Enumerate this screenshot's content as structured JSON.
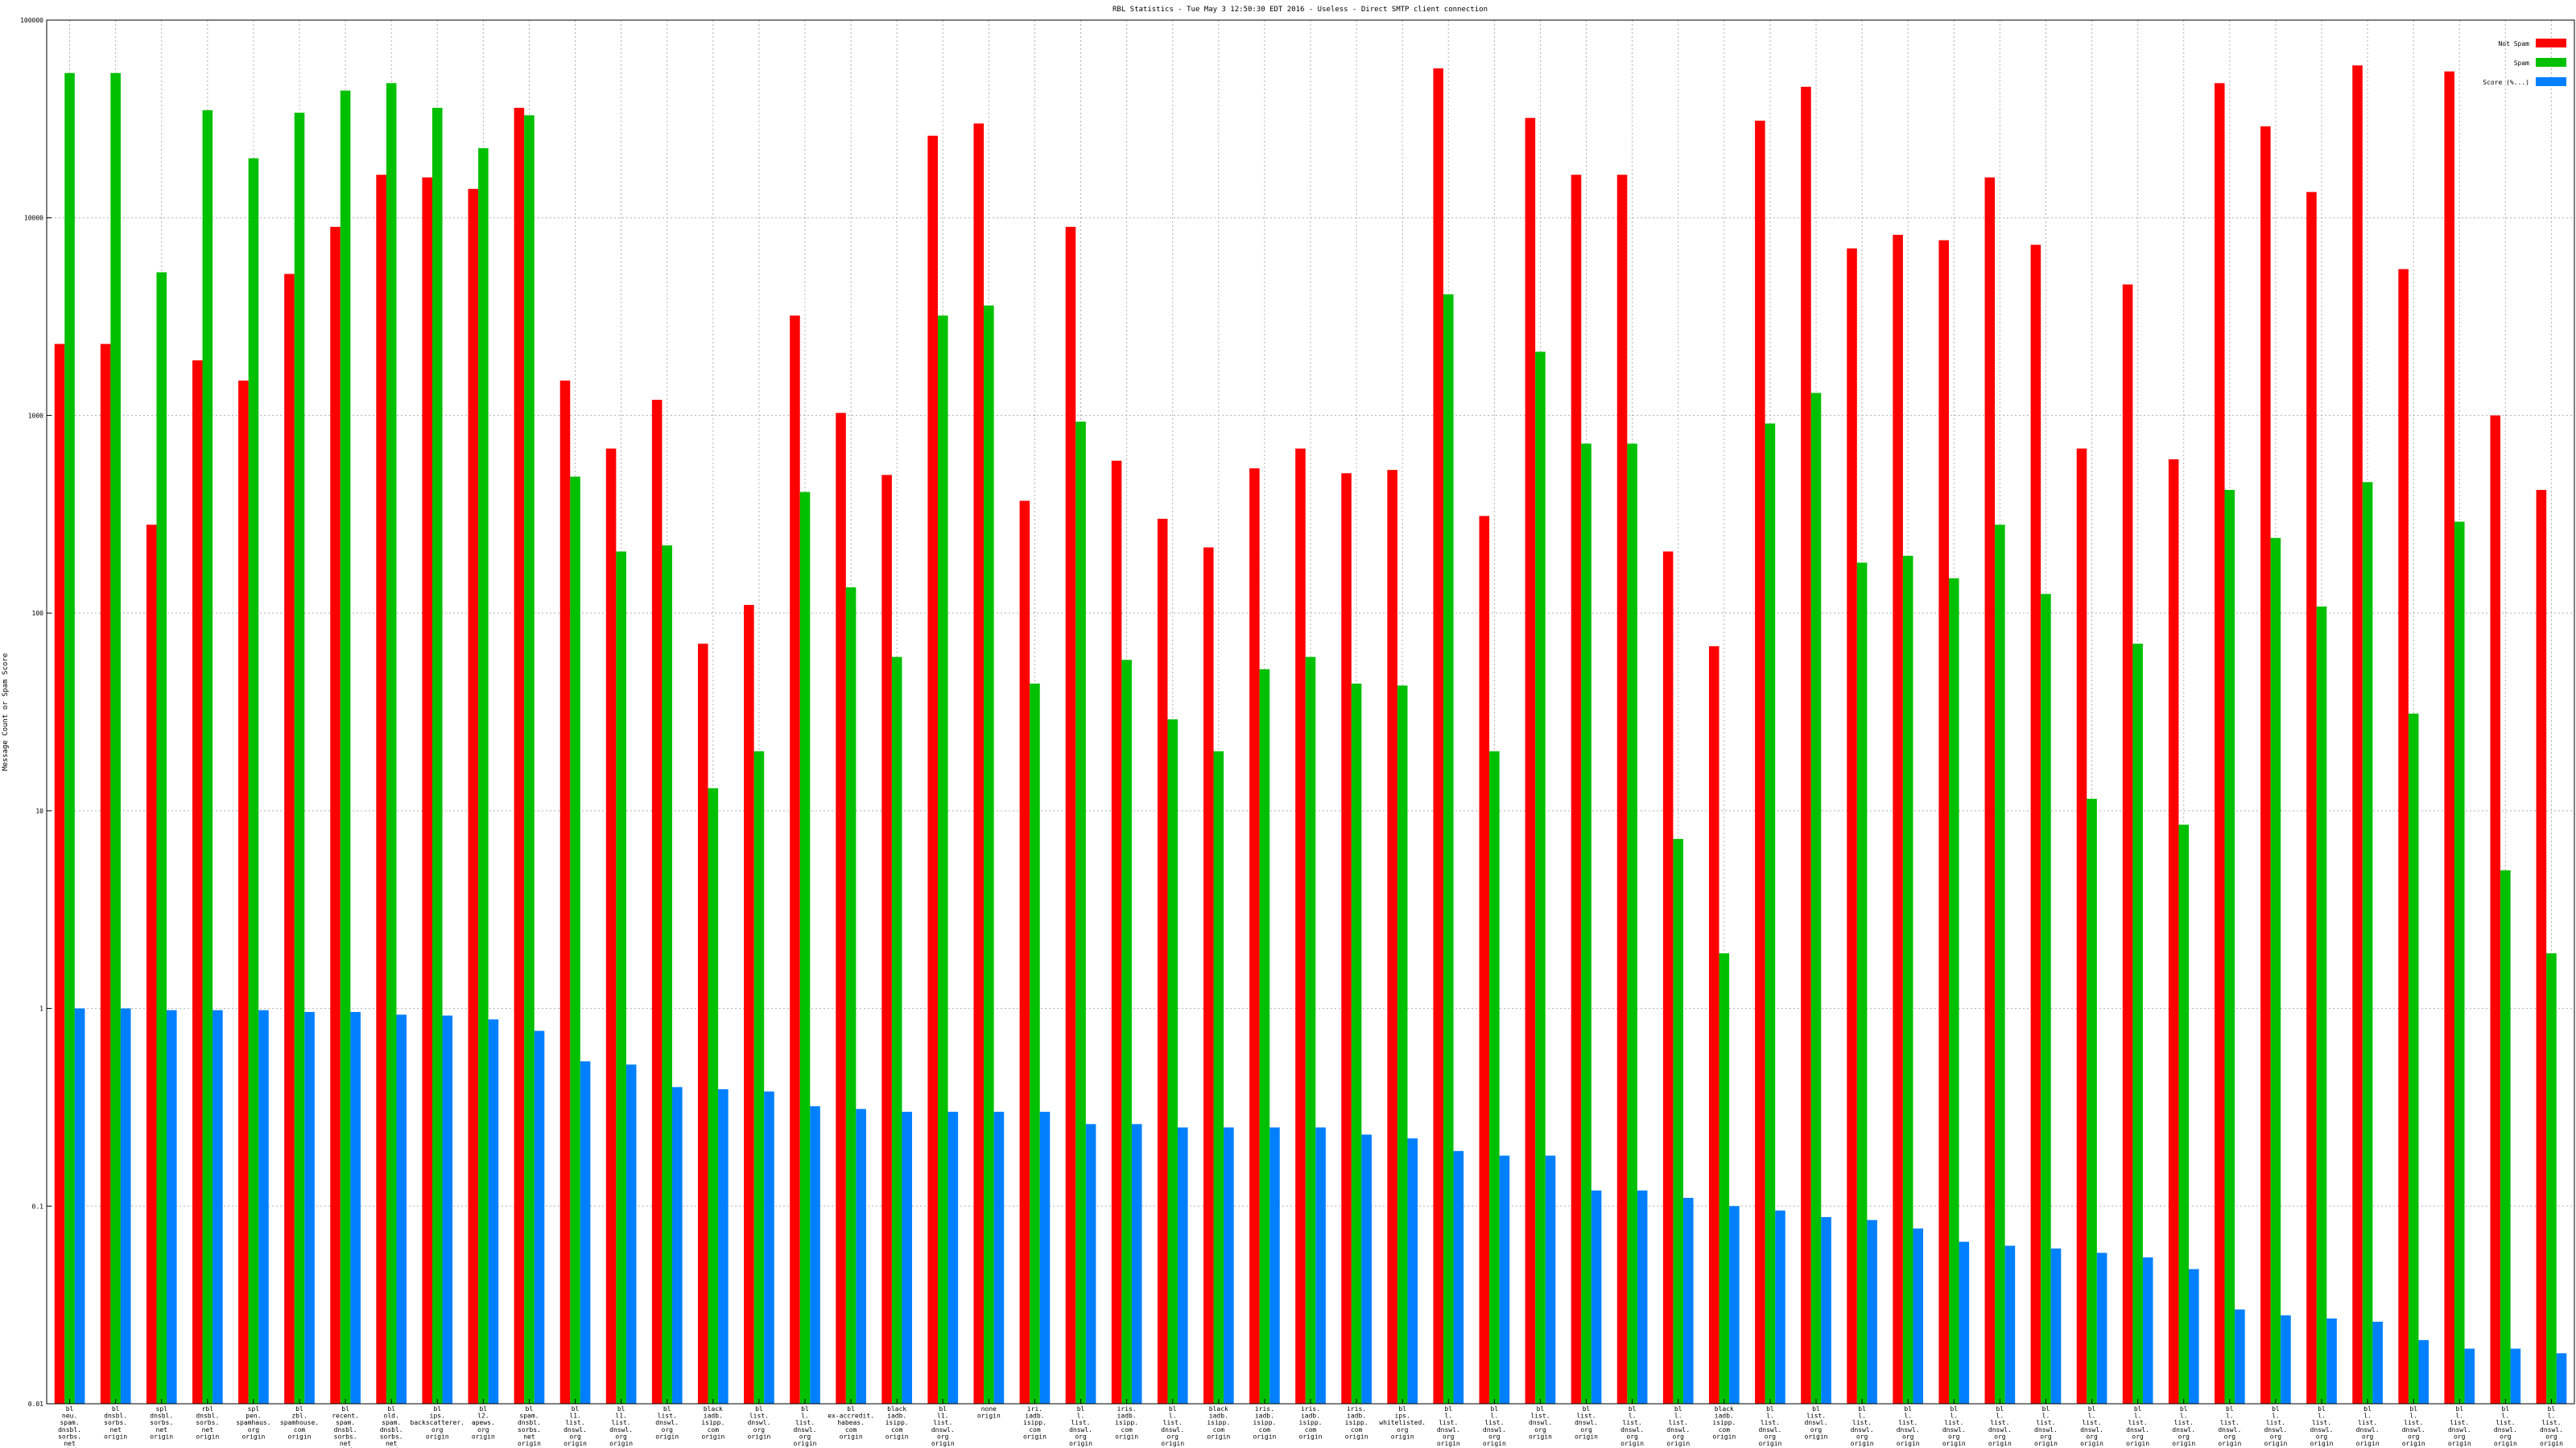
{
  "chart_data": {
    "type": "bar",
    "title": "RBL Statistics - Tue May  3 12:50:30 EDT 2016 - Useless - Direct SMTP client connection",
    "ylabel": "Message Count or Spam Score",
    "xlabel": "",
    "scale": "log10",
    "ylim": [
      0.01,
      100000
    ],
    "y_ticks": [
      0.01,
      0.1,
      1,
      10,
      100,
      1000,
      10000,
      100000
    ],
    "y_tick_labels": [
      "0.01",
      "0.1",
      "1",
      "10",
      "100",
      "1000",
      "10000",
      "100000"
    ],
    "grid": true,
    "legend_position": "top-right",
    "categories": [
      [
        "bl",
        "neu.",
        "spam.",
        "dnsbl.",
        "sorbs.",
        "net",
        "origin"
      ],
      [
        "bl",
        "dnsbl.",
        "sorbs.",
        "net",
        "origin"
      ],
      [
        "spl",
        "dnsbl.",
        "sorbs.",
        "net",
        "origin"
      ],
      [
        "rbl",
        "dnsbl.",
        "sorbs.",
        "net",
        "origin"
      ],
      [
        "spl",
        "pen.",
        "spamhaus.",
        "org",
        "origin"
      ],
      [
        "bl",
        "zbl.",
        "spamhouse.",
        "com",
        "origin"
      ],
      [
        "bl",
        "recent.",
        "spam.",
        "dnsbl.",
        "sorbs.",
        "net",
        "origin"
      ],
      [
        "bl",
        "old.",
        "spam.",
        "dnsbl.",
        "sorbs.",
        "net",
        "origin"
      ],
      [
        "bl",
        "ips.",
        "backscatterer.",
        "org",
        "origin"
      ],
      [
        "bl",
        "l2.",
        "apews.",
        "org",
        "origin"
      ],
      [
        "bl",
        "spam.",
        "dnsbl.",
        "sorbs.",
        "net",
        "origin"
      ],
      [
        "bl",
        "l1.",
        "list.",
        "dnswl.",
        "org",
        "origin"
      ],
      [
        "bl",
        "l1.",
        "list.",
        "dnswl.",
        "org",
        "origin"
      ],
      [
        "bl",
        "list.",
        "dnswl.",
        "org",
        "origin"
      ],
      [
        "black",
        "iadb.",
        "isipp.",
        "com",
        "origin"
      ],
      [
        "bl",
        "list.",
        "dnswl.",
        "org",
        "origin"
      ],
      [
        "bl",
        "l.",
        "list.",
        "dnswl.",
        "org",
        "origin"
      ],
      [
        "bl",
        "ex-accredit.",
        "habeas.",
        "com",
        "origin"
      ],
      [
        "black",
        "iadb.",
        "isipp.",
        "com",
        "origin"
      ],
      [
        "bl",
        "l1.",
        "list.",
        "dnswl.",
        "org",
        "origin"
      ],
      [
        "none",
        "origin"
      ],
      [
        "iri.",
        "iadb.",
        "isipp.",
        "com",
        "origin"
      ],
      [
        "bl",
        "l.",
        "list.",
        "dnswl.",
        "org",
        "origin"
      ],
      [
        "iris.",
        "iadb.",
        "isipp.",
        "com",
        "origin"
      ],
      [
        "bl",
        "l.",
        "list.",
        "dnswl.",
        "org",
        "origin"
      ],
      [
        "black",
        "iadb.",
        "isipp.",
        "com",
        "origin"
      ],
      [
        "iris.",
        "iadb.",
        "isipp.",
        "com",
        "origin"
      ],
      [
        "iris.",
        "iadb.",
        "isipp.",
        "com",
        "origin"
      ],
      [
        "iris.",
        "iadb.",
        "isipp.",
        "com",
        "origin"
      ],
      [
        "bl",
        "ips.",
        "whitelisted.",
        "org",
        "origin"
      ],
      [
        "bl",
        "l.",
        "list.",
        "dnswl.",
        "org",
        "origin"
      ],
      [
        "bl",
        "l.",
        "list.",
        "dnswl.",
        "org",
        "origin"
      ],
      [
        "bl",
        "list.",
        "dnswl.",
        "org",
        "origin"
      ],
      [
        "bl",
        "list.",
        "dnswl.",
        "org",
        "origin"
      ],
      [
        "bl",
        "l.",
        "list.",
        "dnswl.",
        "org",
        "origin"
      ],
      [
        "bl",
        "l.",
        "list.",
        "dnswl.",
        "org",
        "origin"
      ],
      [
        "black",
        "iadb.",
        "isipp.",
        "com",
        "origin"
      ],
      [
        "bl",
        "l.",
        "list.",
        "dnswl.",
        "org",
        "origin"
      ],
      [
        "bl",
        "list.",
        "dnswl.",
        "org",
        "origin"
      ],
      [
        "bl",
        "l.",
        "list.",
        "dnswl.",
        "org",
        "origin"
      ],
      [
        "bl",
        "l.",
        "list.",
        "dnswl.",
        "org",
        "origin"
      ],
      [
        "bl",
        "l.",
        "list.",
        "dnswl.",
        "org",
        "origin"
      ],
      [
        "bl",
        "l.",
        "list.",
        "dnswl.",
        "org",
        "origin"
      ],
      [
        "bl",
        "l.",
        "list.",
        "dnswl.",
        "org",
        "origin"
      ],
      [
        "bl",
        "l.",
        "list.",
        "dnswl.",
        "org",
        "origin"
      ],
      [
        "bl",
        "l.",
        "list.",
        "dnswl.",
        "org",
        "origin"
      ],
      [
        "bl",
        "l.",
        "list.",
        "dnswl.",
        "org",
        "origin"
      ],
      [
        "bl",
        "l.",
        "list.",
        "dnswl.",
        "org",
        "origin"
      ],
      [
        "bl",
        "l.",
        "list.",
        "dnswl.",
        "org",
        "origin"
      ],
      [
        "bl",
        "l.",
        "list.",
        "dnswl.",
        "org",
        "origin"
      ],
      [
        "bl",
        "l.",
        "list.",
        "dnswl.",
        "org",
        "origin"
      ],
      [
        "bl",
        "l.",
        "list.",
        "dnswl.",
        "org",
        "origin"
      ],
      [
        "bl",
        "l.",
        "list.",
        "dnswl.",
        "org",
        "origin"
      ],
      [
        "bl",
        "l.",
        "list.",
        "dnswl.",
        "org",
        "origin"
      ],
      [
        "bl",
        "l.",
        "list.",
        "dnswl.",
        "org",
        "origin"
      ]
    ],
    "series": [
      {
        "name": "Not Spam",
        "color": "#ff0000",
        "values": [
          2300,
          2300,
          280,
          1900,
          1500,
          5200,
          9000,
          16500,
          16000,
          14000,
          36000,
          1500,
          680,
          1200,
          70,
          110,
          3200,
          1030,
          500,
          26000,
          30000,
          370,
          9000,
          590,
          300,
          215,
          540,
          680,
          510,
          530,
          57000,
          310,
          32000,
          16500,
          16500,
          205,
          68,
          31000,
          46000,
          7000,
          8200,
          7700,
          16000,
          7300,
          680,
          4600,
          600,
          48000,
          29000,
          13500,
          59000,
          5500,
          55000,
          1000,
          420
        ]
      },
      {
        "name": "Spam",
        "color": "#00c000",
        "values": [
          54000,
          54000,
          5300,
          35000,
          20000,
          34000,
          44000,
          48000,
          36000,
          22500,
          33000,
          490,
          205,
          220,
          13,
          20,
          410,
          135,
          60,
          3200,
          3600,
          44,
          930,
          58,
          29,
          20,
          52,
          60,
          44,
          43,
          4100,
          20,
          2100,
          720,
          720,
          7.2,
          1.9,
          910,
          1300,
          180,
          195,
          150,
          280,
          125,
          11.5,
          70,
          8.5,
          420,
          240,
          108,
          460,
          31,
          290,
          5,
          1.9
        ]
      },
      {
        "name": "Score (%...)",
        "color": "#0080ff",
        "values": [
          1.0,
          1.0,
          0.98,
          0.98,
          0.98,
          0.96,
          0.96,
          0.93,
          0.92,
          0.88,
          0.77,
          0.54,
          0.52,
          0.4,
          0.39,
          0.38,
          0.32,
          0.31,
          0.3,
          0.3,
          0.3,
          0.3,
          0.26,
          0.26,
          0.25,
          0.25,
          0.25,
          0.25,
          0.23,
          0.22,
          0.19,
          0.18,
          0.18,
          0.12,
          0.12,
          0.11,
          0.1,
          0.095,
          0.088,
          0.085,
          0.077,
          0.066,
          0.063,
          0.061,
          0.058,
          0.055,
          0.048,
          0.03,
          0.028,
          0.027,
          0.026,
          0.021,
          0.019,
          0.019,
          0.018
        ]
      }
    ]
  }
}
